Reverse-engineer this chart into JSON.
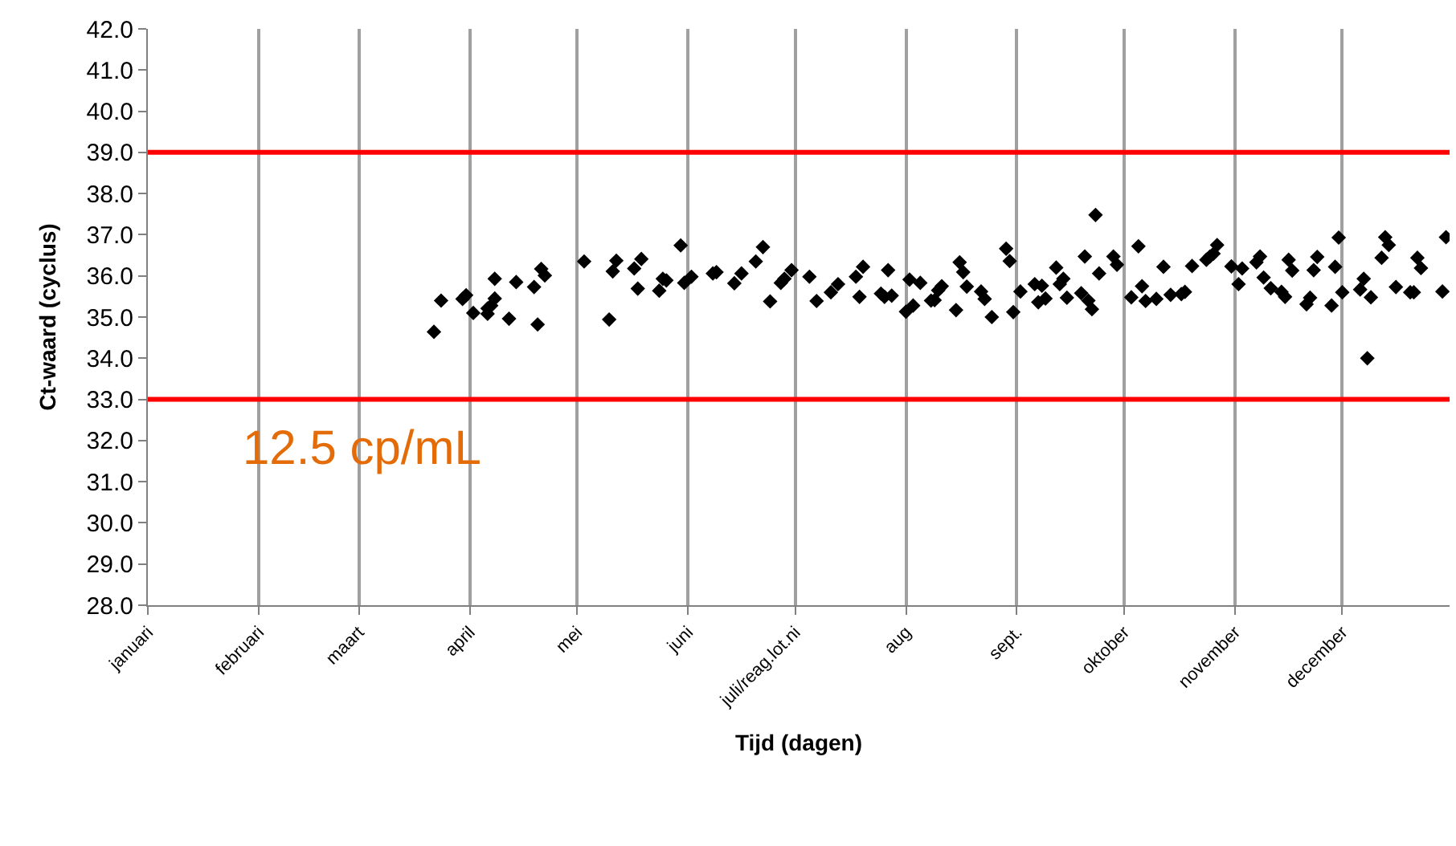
{
  "chart_data": {
    "type": "scatter",
    "xlabel": "Tijd (dagen)",
    "ylabel": "Ct-waard (cyclus)",
    "annotations": [
      "12.5 cp/mL"
    ],
    "marker": "diamond",
    "grid": "x",
    "xlim": [
      "--01-01",
      "--12-31"
    ],
    "xticks": [
      {
        "value": "--01-01",
        "label": "januari"
      },
      {
        "value": "--02-01",
        "label": "februari"
      },
      {
        "value": "--03-01",
        "label": "maart"
      },
      {
        "value": "--04-01",
        "label": "april"
      },
      {
        "value": "--05-01",
        "label": "mei"
      },
      {
        "value": "--06-01",
        "label": "juni"
      },
      {
        "value": "--07-01",
        "label": "juli/reag.lot.ni"
      },
      {
        "value": "--08-01",
        "label": "aug"
      },
      {
        "value": "--09-01",
        "label": "sept."
      },
      {
        "value": "--10-01",
        "label": "oktober"
      },
      {
        "value": "--11-01",
        "label": "november"
      },
      {
        "value": "--12-01",
        "label": "december"
      }
    ],
    "ylim": [
      28,
      42
    ],
    "yticks": [
      {
        "value": 28,
        "label": "28.0"
      },
      {
        "value": 29,
        "label": "29.0"
      },
      {
        "value": 30,
        "label": "30.0"
      },
      {
        "value": 31,
        "label": "31.0"
      },
      {
        "value": 32,
        "label": "32.0"
      },
      {
        "value": 33,
        "label": "33.0"
      },
      {
        "value": 34,
        "label": "34.0"
      },
      {
        "value": 35,
        "label": "35.0"
      },
      {
        "value": 36,
        "label": "36.0"
      },
      {
        "value": 37,
        "label": "37.0"
      },
      {
        "value": 38,
        "label": "38.0"
      },
      {
        "value": 39,
        "label": "39.0"
      },
      {
        "value": 40,
        "label": "40.0"
      },
      {
        "value": 41,
        "label": "41.0"
      },
      {
        "value": 42,
        "label": "42.0"
      }
    ],
    "ref_lines": [
      {
        "axis": "y",
        "value": 39,
        "color": "#ff0000"
      },
      {
        "axis": "y",
        "value": 33,
        "color": "#ff0000"
      }
    ],
    "series": [
      {
        "color": "#000000",
        "x": [
          "--03-22",
          "--03-24",
          "--03-30",
          "--03-31",
          "--04-02",
          "--04-06",
          "--04-06",
          "--04-07",
          "--04-08",
          "--04-08",
          "--04-12",
          "--04-14",
          "--04-19",
          "--04-20",
          "--04-21",
          "--04-22",
          "--05-03",
          "--05-10",
          "--05-11",
          "--05-12",
          "--05-17",
          "--05-18",
          "--05-19",
          "--05-24",
          "--05-25",
          "--05-26",
          "--05-30",
          "--05-31",
          "--06-02",
          "--06-08",
          "--06-09",
          "--06-14",
          "--06-16",
          "--06-20",
          "--06-22",
          "--06-24",
          "--06-27",
          "--06-28",
          "--06-30",
          "--07-05",
          "--07-07",
          "--07-11",
          "--07-13",
          "--07-18",
          "--07-19",
          "--07-20",
          "--07-25",
          "--07-26",
          "--07-27",
          "--07-28",
          "--08-01",
          "--08-02",
          "--08-03",
          "--08-05",
          "--08-08",
          "--08-09",
          "--08-10",
          "--08-11",
          "--08-15",
          "--08-16",
          "--08-17",
          "--08-18",
          "--08-22",
          "--08-23",
          "--08-25",
          "--08-29",
          "--08-30",
          "--08-31",
          "--09-02",
          "--09-06",
          "--09-08",
          "--09-07",
          "--09-09",
          "--09-12",
          "--09-13",
          "--09-14",
          "--09-15",
          "--09-19",
          "--09-20",
          "--09-21",
          "--09-22",
          "--09-23",
          "--09-24",
          "--09-28",
          "--09-29",
          "--10-05",
          "--10-03",
          "--10-06",
          "--10-07",
          "--10-10",
          "--10-12",
          "--10-14",
          "--10-17",
          "--10-18",
          "--10-20",
          "--10-24",
          "--10-25",
          "--10-26",
          "--10-27",
          "--10-31",
          "--11-02",
          "--11-03",
          "--11-07",
          "--11-08",
          "--11-09",
          "--11-11",
          "--11-14",
          "--11-15",
          "--11-16",
          "--11-17",
          "--11-21",
          "--11-22",
          "--11-23",
          "--11-24",
          "--11-28",
          "--11-29",
          "--11-30",
          "--12-01",
          "--12-06",
          "--12-07",
          "--12-09",
          "--12-08",
          "--12-12",
          "--12-13",
          "--12-14",
          "--12-16",
          "--12-20",
          "--12-21",
          "--12-22",
          "--12-23",
          "--12-29",
          "--12-30"
        ],
        "values": [
          34.64,
          35.4,
          35.44,
          35.53,
          35.1,
          35.08,
          35.21,
          35.28,
          35.45,
          35.93,
          34.96,
          35.85,
          35.73,
          34.82,
          36.17,
          36.01,
          36.35,
          34.94,
          36.11,
          36.37,
          36.18,
          35.69,
          36.41,
          35.64,
          35.93,
          35.89,
          36.74,
          35.83,
          35.98,
          36.06,
          36.09,
          35.82,
          36.06,
          36.35,
          36.7,
          35.38,
          35.83,
          35.93,
          36.14,
          35.98,
          35.39,
          35.6,
          35.8,
          35.98,
          35.49,
          36.22,
          35.57,
          35.49,
          36.14,
          35.52,
          35.13,
          35.91,
          35.28,
          35.83,
          35.4,
          35.41,
          35.65,
          35.75,
          35.17,
          36.33,
          36.09,
          35.74,
          35.62,
          35.44,
          35.0,
          36.66,
          36.36,
          35.12,
          35.62,
          35.8,
          35.76,
          35.36,
          35.45,
          36.2,
          35.8,
          35.93,
          35.47,
          35.58,
          36.47,
          35.4,
          35.19,
          37.48,
          36.06,
          36.47,
          36.27,
          36.72,
          35.48,
          35.75,
          35.39,
          35.44,
          36.22,
          35.54,
          35.56,
          35.61,
          36.24,
          36.39,
          36.47,
          36.54,
          36.75,
          36.23,
          35.8,
          36.18,
          36.33,
          36.47,
          35.96,
          35.7,
          35.61,
          35.49,
          36.39,
          36.13,
          35.31,
          35.47,
          36.14,
          36.46,
          35.28,
          36.22,
          36.93,
          35.6,
          35.67,
          35.93,
          35.48,
          34.0,
          36.44,
          36.94,
          36.75,
          35.73,
          35.6,
          35.6,
          36.44,
          36.19,
          35.62,
          36.94
        ]
      }
    ]
  }
}
